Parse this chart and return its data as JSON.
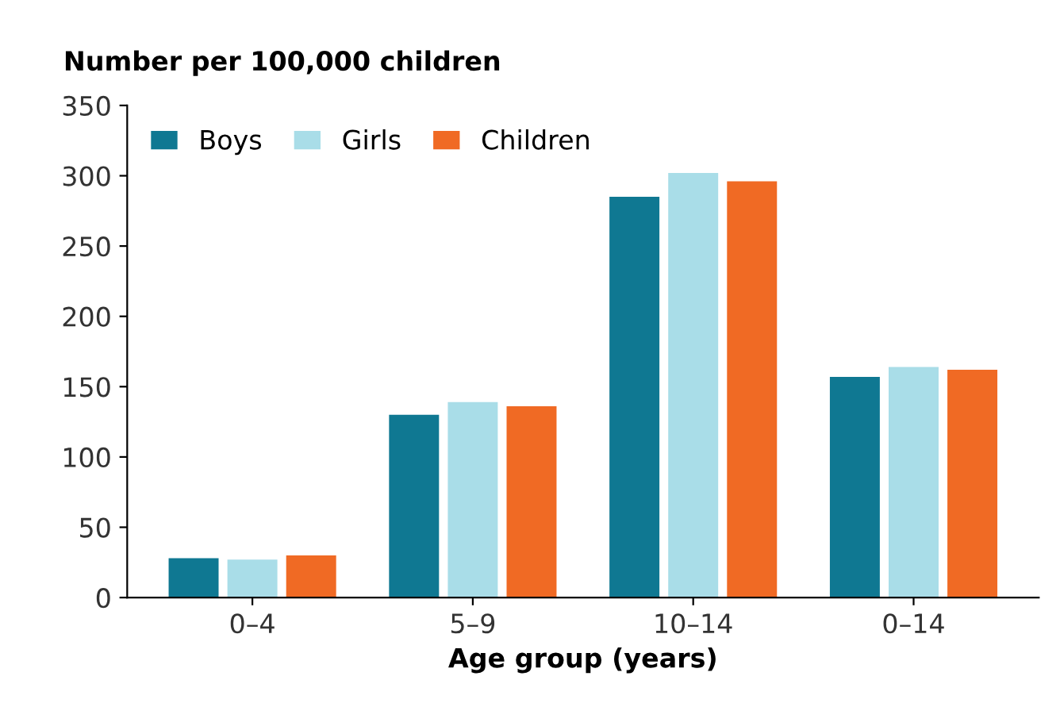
{
  "chart_data": {
    "type": "bar",
    "xlabel": "Age group (years)",
    "ylabel": "Number per 100,000 children",
    "categories": [
      "0–4",
      "5–9",
      "10–14",
      "0–14"
    ],
    "series": [
      {
        "name": "Boys",
        "color": "#0f7892",
        "values": [
          28,
          130,
          285,
          157
        ]
      },
      {
        "name": "Girls",
        "color": "#a9dde8",
        "values": [
          27,
          139,
          302,
          164
        ]
      },
      {
        "name": "Children",
        "color": "#f06a24",
        "values": [
          30,
          136,
          296,
          162
        ]
      }
    ],
    "ylim": [
      0,
      350
    ],
    "yticks": [
      0,
      50,
      100,
      150,
      200,
      250,
      300,
      350
    ],
    "grid": false,
    "legend": "top left"
  }
}
